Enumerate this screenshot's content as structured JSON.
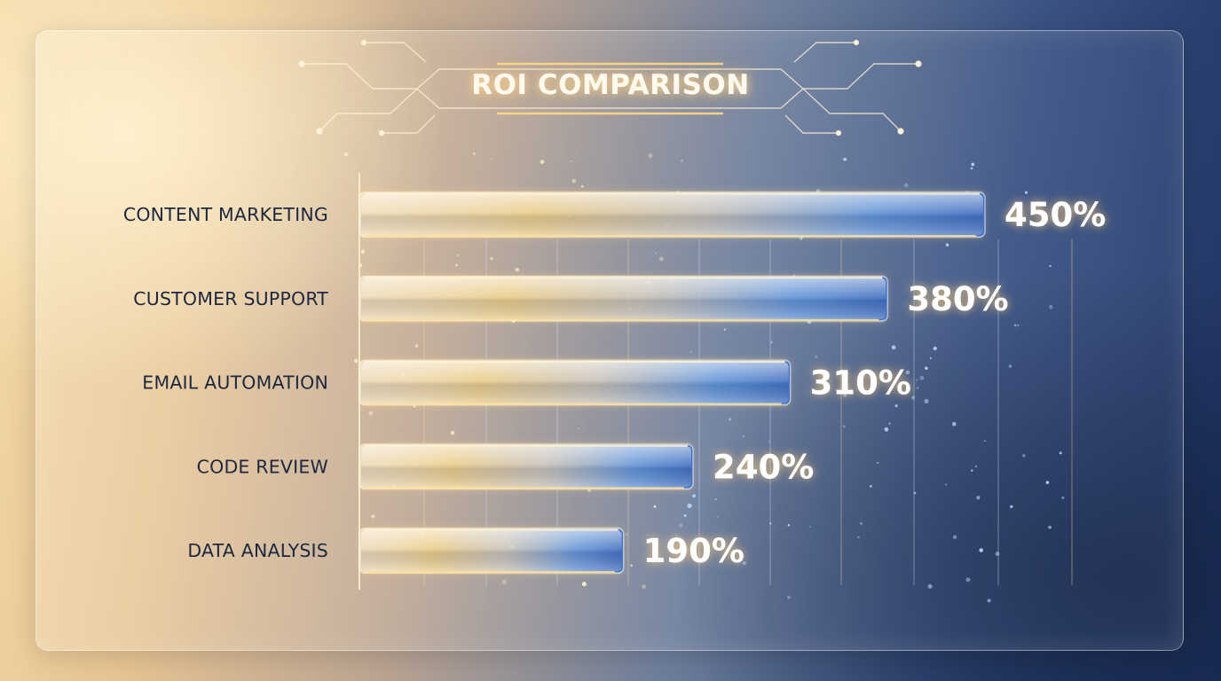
{
  "chart_data": {
    "type": "bar",
    "orientation": "horizontal",
    "title": "ROI COMPARISON",
    "categories": [
      "CONTENT MARKETING",
      "CUSTOMER SUPPORT",
      "EMAIL AUTOMATION",
      "CODE REVIEW",
      "DATA ANALYSIS"
    ],
    "values": [
      450,
      380,
      310,
      240,
      190
    ],
    "value_labels": [
      "450%",
      "380%",
      "310%",
      "240%",
      "190%"
    ],
    "value_unit": "%",
    "xlim": [
      0,
      500
    ],
    "grid": true,
    "legend": "none",
    "colors": {
      "bar_start": "#f7e6c0",
      "bar_mid": "#eac97f",
      "bar_end": "#4f88d8",
      "label_text": "#1c2740",
      "value_text": "#ffffff",
      "glow": "#ffd27a"
    }
  }
}
